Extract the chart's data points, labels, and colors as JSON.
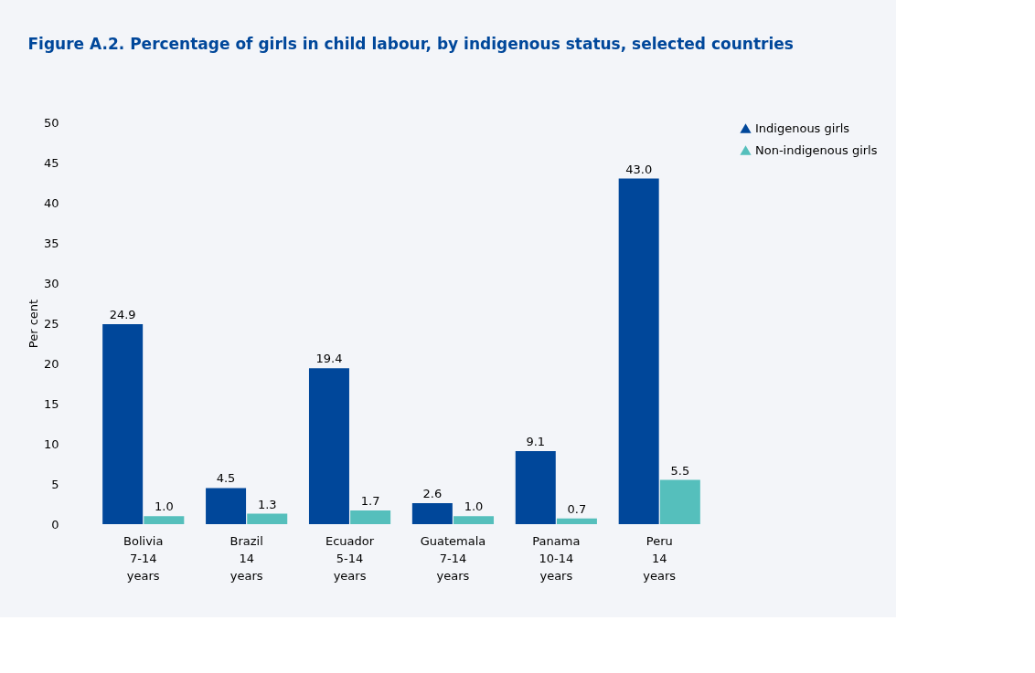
{
  "chart_data": {
    "type": "bar",
    "title": "Figure A.2. Percentage of girls in child labour, by indigenous status, selected countries",
    "ylabel": "Per cent",
    "categories": [
      "Bolivia\n\n7-14\nyears",
      "Brazil\n\n14\nyears",
      "Ecuador\n\n5-14\nyears",
      "Guatemala\n\n7-14\nyears",
      "Panama\n\n10-14\nyears",
      "Peru\n\n14\nyears"
    ],
    "series": [
      {
        "name": "Indigenous girls",
        "color": "#00479a",
        "values": [
          24.9,
          4.5,
          19.4,
          2.6,
          9.1,
          43
        ],
        "value_labels": [
          "24.9",
          "4.5",
          "19.4",
          "2.6",
          "9.1",
          "43.0"
        ]
      },
      {
        "name": "Non-indigenous girls",
        "color": "#55bfbc",
        "values": [
          1,
          1.3,
          1.7,
          1,
          0.7,
          5.5
        ],
        "value_labels": [
          "1.0",
          "1.3",
          "1.7",
          "1.0",
          "0.7",
          "5.5"
        ]
      }
    ],
    "ylim": [
      0,
      50
    ],
    "yticks": [
      0,
      5,
      10,
      15,
      20,
      25,
      30,
      35,
      40,
      45,
      50
    ],
    "legend": "right",
    "grid": false
  }
}
